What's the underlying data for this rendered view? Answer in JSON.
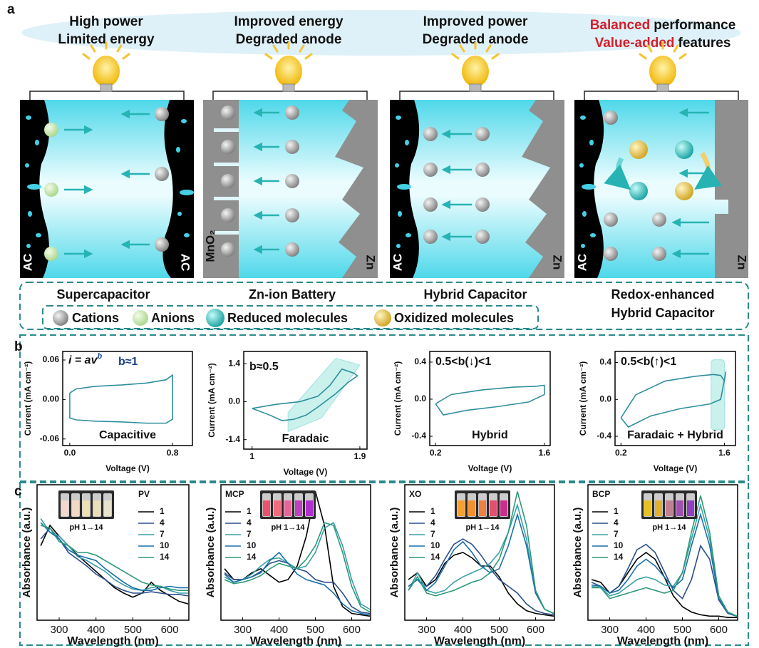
{
  "panel_labels": [
    "a",
    "b",
    "c"
  ],
  "panel_a": {
    "cells": [
      {
        "title": [
          "High power",
          "Limited energy"
        ],
        "left_electrode": "AC",
        "right_electrode": "AC",
        "name": [
          "Supercapacitor"
        ]
      },
      {
        "title": [
          "Improved energy",
          "Degraded anode"
        ],
        "left_electrode": "MnO₂",
        "right_electrode": "Zn",
        "name": [
          "Zn-ion Battery"
        ]
      },
      {
        "title": [
          "Improved power",
          "Degraded anode"
        ],
        "left_electrode": "AC",
        "right_electrode": "Zn",
        "name": [
          "Hybrid Capacitor"
        ]
      },
      {
        "title_highlight": [
          "Balanced",
          "Value-added"
        ],
        "title": [
          "performance",
          "features"
        ],
        "left_electrode": "AC",
        "right_electrode": "Zn",
        "name": [
          "Redox-enhanced",
          "Hybrid Capacitor"
        ]
      }
    ],
    "legend": [
      "Cations",
      "Anions",
      "Reduced molecules",
      "Oxidized molecules"
    ]
  },
  "chart_data": [
    {
      "type": "line",
      "equation": {
        "base": "i = av",
        "sup": "b"
      },
      "annotation": "b≈1",
      "label": "Capacitive",
      "xlabel": "Voltage (V)",
      "ylabel": "Current (mA cm⁻²)",
      "xlim": [
        -0.055,
        0.955
      ],
      "ylim": [
        -0.07,
        0.073
      ],
      "xticks": [
        {
          "value": 0,
          "label": "0.0"
        },
        0.8
      ],
      "yticks": [
        0.06,
        {
          "value": 0,
          "label": "0.00"
        },
        -0.06
      ],
      "series": [
        {
          "color": "#2f8f9d",
          "x": [
            0,
            0.05,
            0.2,
            0.4,
            0.6,
            0.75,
            0.8,
            0.8,
            0.75,
            0.6,
            0.4,
            0.2,
            0.05,
            0,
            0
          ],
          "values": [
            0.01,
            0.016,
            0.02,
            0.022,
            0.025,
            0.03,
            0.037,
            -0.03,
            -0.036,
            -0.036,
            -0.034,
            -0.033,
            -0.031,
            -0.028,
            0.01
          ]
        }
      ]
    },
    {
      "type": "line",
      "annotation": "b≈0.5",
      "label": "Faradaic",
      "xlabel": "Voltage (V)",
      "ylabel": "Current (mA cm⁻²)",
      "xlim": [
        0.93,
        1.96
      ],
      "ylim": [
        -1.75,
        1.85
      ],
      "xticks": [
        1,
        1.9
      ],
      "yticks": [
        1.4,
        {
          "value": 0,
          "label": "0.0"
        },
        -1.4
      ],
      "series": [
        {
          "color": "#2f8f9d",
          "x": [
            1.0,
            1.2,
            1.4,
            1.55,
            1.65,
            1.75,
            1.85,
            1.88,
            1.8,
            1.7,
            1.55,
            1.45,
            1.35,
            1.25,
            1.15,
            1.0
          ],
          "values": [
            -0.25,
            -0.1,
            0.0,
            0.2,
            0.6,
            1.2,
            1.05,
            0.95,
            0.7,
            0.3,
            -0.2,
            -0.5,
            -0.65,
            -0.7,
            -0.5,
            -0.25
          ]
        }
      ]
    },
    {
      "type": "line",
      "annotation": "0.5<b(↓)<1",
      "label": "Hybrid",
      "xlabel": "Voltage (V)",
      "ylabel": "Current (mA cm⁻²)",
      "xlim": [
        0.125,
        1.675
      ],
      "ylim": [
        -0.5,
        0.515
      ],
      "xticks": [
        0.2,
        1.6
      ],
      "yticks": [
        0.4,
        {
          "value": 0,
          "label": "0.0"
        },
        -0.4
      ],
      "series": [
        {
          "color": "#2f8f9d",
          "x": [
            0.2,
            0.4,
            0.8,
            1.2,
            1.5,
            1.6,
            1.6,
            1.4,
            1.0,
            0.6,
            0.3,
            0.2
          ],
          "values": [
            -0.05,
            0.05,
            0.1,
            0.13,
            0.14,
            0.15,
            0.05,
            -0.03,
            -0.08,
            -0.12,
            -0.17,
            -0.05
          ]
        }
      ]
    },
    {
      "type": "line",
      "annotation": "0.5<b(↑)<1",
      "label": "Faradaic + Hybrid",
      "xlabel": "Voltage (V)",
      "ylabel": "Current (mA cm⁻²)",
      "xlim": [
        0.12,
        1.75
      ],
      "ylim": [
        -0.5,
        0.52
      ],
      "xticks": [
        0.2,
        1.6
      ],
      "yticks": [
        0.4,
        {
          "value": 0,
          "label": "0.0"
        },
        -0.4
      ],
      "series": [
        {
          "color": "#2f8f9d",
          "x": [
            0.2,
            0.4,
            0.8,
            1.2,
            1.45,
            1.55,
            1.6,
            1.62,
            1.55,
            1.4,
            1.0,
            0.6,
            0.3,
            0.2
          ],
          "values": [
            -0.2,
            0.05,
            0.2,
            0.25,
            0.27,
            0.26,
            0.2,
            0.3,
            0.0,
            -0.05,
            -0.1,
            -0.18,
            -0.3,
            -0.2
          ]
        }
      ]
    },
    {
      "type": "line",
      "title": "PV",
      "legend": "upper right",
      "inset": {
        "label": "pH 1→14",
        "colors": [
          "#f3d7cf",
          "#f1d9c6",
          "#efe0b0",
          "#eadfb8",
          "#e6e2cc"
        ]
      },
      "xlabel": "Wavelength (nm)",
      "ylabel": "Absorbance (a.u.)",
      "xlim": [
        240,
        652
      ],
      "ylim": [
        0,
        1
      ],
      "xticks": [
        300,
        400,
        500,
        600
      ],
      "x": [
        250,
        275,
        300,
        325,
        350,
        375,
        400,
        425,
        450,
        475,
        500,
        525,
        550,
        575,
        600,
        625,
        650
      ],
      "series": [
        {
          "name": "1",
          "color": "#000000",
          "values": [
            0.55,
            0.7,
            0.62,
            0.55,
            0.48,
            0.42,
            0.36,
            0.3,
            0.24,
            0.2,
            0.17,
            0.2,
            0.28,
            0.22,
            0.18,
            0.14,
            0.12
          ]
        },
        {
          "name": "4",
          "color": "#2b4f8c",
          "values": [
            0.6,
            0.68,
            0.6,
            0.5,
            0.45,
            0.4,
            0.34,
            0.3,
            0.25,
            0.22,
            0.2,
            0.2,
            0.21,
            0.2,
            0.19,
            0.19,
            0.18
          ]
        },
        {
          "name": "7",
          "color": "#3aa0a8",
          "values": [
            0.75,
            0.65,
            0.62,
            0.55,
            0.47,
            0.44,
            0.4,
            0.36,
            0.3,
            0.26,
            0.23,
            0.22,
            0.24,
            0.25,
            0.22,
            0.2,
            0.2
          ]
        },
        {
          "name": "10",
          "color": "#1a6fa8",
          "values": [
            0.72,
            0.65,
            0.6,
            0.52,
            0.48,
            0.46,
            0.44,
            0.38,
            0.33,
            0.28,
            0.24,
            0.22,
            0.22,
            0.24,
            0.25,
            0.24,
            0.24
          ]
        },
        {
          "name": "14",
          "color": "#2c9a7a",
          "values": [
            0.7,
            0.68,
            0.58,
            0.55,
            0.5,
            0.5,
            0.48,
            0.44,
            0.4,
            0.36,
            0.32,
            0.28,
            0.26,
            0.25,
            0.23,
            0.22,
            0.22
          ]
        }
      ]
    },
    {
      "type": "line",
      "title": "MCP",
      "legend": "upper left",
      "inset": {
        "label": "pH 1→14",
        "colors": [
          "#f05070",
          "#f06a80",
          "#e8649a",
          "#c040c0",
          "#b030d0"
        ]
      },
      "xlabel": "Wavelength (nm)",
      "ylabel": "Absorbance (a.u.)",
      "xlim": [
        240,
        652
      ],
      "ylim": [
        0,
        1
      ],
      "xticks": [
        300,
        400,
        500,
        600
      ],
      "x": [
        250,
        275,
        300,
        325,
        350,
        375,
        400,
        425,
        450,
        475,
        500,
        525,
        550,
        575,
        600,
        625,
        650
      ],
      "series": [
        {
          "name": "1",
          "color": "#000000",
          "values": [
            0.38,
            0.3,
            0.3,
            0.35,
            0.38,
            0.33,
            0.28,
            0.3,
            0.4,
            0.62,
            0.95,
            0.7,
            0.25,
            0.1,
            0.05,
            0.04,
            0.03
          ]
        },
        {
          "name": "4",
          "color": "#2b4f8c",
          "values": [
            0.35,
            0.3,
            0.3,
            0.32,
            0.36,
            0.42,
            0.44,
            0.42,
            0.38,
            0.36,
            0.3,
            0.28,
            0.28,
            0.2,
            0.1,
            0.06,
            0.05
          ]
        },
        {
          "name": "7",
          "color": "#3aa0a8",
          "values": [
            0.32,
            0.28,
            0.3,
            0.34,
            0.4,
            0.45,
            0.46,
            0.42,
            0.38,
            0.4,
            0.5,
            0.68,
            0.72,
            0.55,
            0.3,
            0.12,
            0.08
          ]
        },
        {
          "name": "10",
          "color": "#1a6fa8",
          "values": [
            0.34,
            0.28,
            0.3,
            0.32,
            0.35,
            0.44,
            0.5,
            0.42,
            0.34,
            0.3,
            0.28,
            0.26,
            0.2,
            0.12,
            0.07,
            0.05,
            0.04
          ]
        },
        {
          "name": "14",
          "color": "#2c9a7a",
          "values": [
            0.3,
            0.27,
            0.28,
            0.3,
            0.33,
            0.38,
            0.42,
            0.4,
            0.38,
            0.45,
            0.55,
            0.72,
            0.7,
            0.5,
            0.25,
            0.1,
            0.06
          ]
        }
      ]
    },
    {
      "type": "line",
      "title": "XO",
      "legend": "upper left",
      "inset": {
        "label": "pH 1→14",
        "colors": [
          "#f7a030",
          "#f59030",
          "#f08040",
          "#e05070",
          "#c83090"
        ]
      },
      "xlabel": "Wavelength (nm)",
      "ylabel": "Absorbance (a.u.)",
      "xlim": [
        240,
        652
      ],
      "ylim": [
        0,
        1
      ],
      "xticks": [
        300,
        400,
        500,
        600
      ],
      "x": [
        250,
        275,
        300,
        325,
        350,
        375,
        400,
        425,
        450,
        475,
        500,
        525,
        550,
        575,
        600,
        625,
        650
      ],
      "series": [
        {
          "name": "1",
          "color": "#000000",
          "values": [
            0.3,
            0.35,
            0.25,
            0.3,
            0.42,
            0.48,
            0.5,
            0.46,
            0.4,
            0.4,
            0.32,
            0.2,
            0.12,
            0.07,
            0.05,
            0.04,
            0.03
          ]
        },
        {
          "name": "4",
          "color": "#2b4f8c",
          "values": [
            0.25,
            0.3,
            0.25,
            0.33,
            0.45,
            0.56,
            0.6,
            0.56,
            0.48,
            0.38,
            0.3,
            0.25,
            0.2,
            0.12,
            0.07,
            0.05,
            0.04
          ]
        },
        {
          "name": "7",
          "color": "#3aa0a8",
          "values": [
            0.22,
            0.35,
            0.22,
            0.2,
            0.22,
            0.28,
            0.32,
            0.35,
            0.38,
            0.42,
            0.5,
            0.65,
            0.85,
            0.6,
            0.2,
            0.08,
            0.05
          ]
        },
        {
          "name": "10",
          "color": "#1a6fa8",
          "values": [
            0.25,
            0.3,
            0.22,
            0.28,
            0.4,
            0.52,
            0.58,
            0.5,
            0.4,
            0.35,
            0.38,
            0.55,
            0.78,
            0.55,
            0.2,
            0.08,
            0.05
          ]
        },
        {
          "name": "14",
          "color": "#2c9a7a",
          "values": [
            0.22,
            0.32,
            0.2,
            0.18,
            0.2,
            0.22,
            0.25,
            0.28,
            0.3,
            0.35,
            0.45,
            0.65,
            0.95,
            0.7,
            0.22,
            0.08,
            0.05
          ]
        }
      ]
    },
    {
      "type": "line",
      "title": "BCP",
      "legend": "upper left",
      "inset": {
        "label": "pH 1→14",
        "colors": [
          "#e8c020",
          "#e0b030",
          "#c08090",
          "#a050b0",
          "#9040c0"
        ]
      },
      "xlabel": "Wavelength (nm)",
      "ylabel": "Absorbance (a.u.)",
      "xlim": [
        240,
        652
      ],
      "ylim": [
        0,
        1
      ],
      "xticks": [
        300,
        400,
        500,
        600
      ],
      "x": [
        250,
        275,
        300,
        325,
        350,
        375,
        400,
        425,
        450,
        475,
        500,
        525,
        550,
        575,
        600,
        625,
        650
      ],
      "series": [
        {
          "name": "1",
          "color": "#000000",
          "values": [
            0.3,
            0.28,
            0.2,
            0.25,
            0.35,
            0.45,
            0.5,
            0.45,
            0.32,
            0.18,
            0.1,
            0.06,
            0.04,
            0.03,
            0.03,
            0.02,
            0.02
          ]
        },
        {
          "name": "4",
          "color": "#2b4f8c",
          "values": [
            0.28,
            0.25,
            0.2,
            0.25,
            0.38,
            0.52,
            0.56,
            0.5,
            0.36,
            0.22,
            0.16,
            0.3,
            0.55,
            0.45,
            0.15,
            0.05,
            0.03
          ]
        },
        {
          "name": "7",
          "color": "#3aa0a8",
          "values": [
            0.25,
            0.24,
            0.18,
            0.2,
            0.25,
            0.3,
            0.32,
            0.3,
            0.26,
            0.25,
            0.35,
            0.6,
            0.85,
            0.6,
            0.18,
            0.06,
            0.03
          ]
        },
        {
          "name": "10",
          "color": "#1a6fa8",
          "values": [
            0.26,
            0.25,
            0.2,
            0.22,
            0.3,
            0.4,
            0.45,
            0.4,
            0.32,
            0.24,
            0.3,
            0.55,
            0.78,
            0.55,
            0.16,
            0.05,
            0.03
          ]
        },
        {
          "name": "14",
          "color": "#2c9a7a",
          "values": [
            0.24,
            0.24,
            0.16,
            0.18,
            0.2,
            0.22,
            0.24,
            0.22,
            0.2,
            0.22,
            0.35,
            0.65,
            0.92,
            0.65,
            0.18,
            0.06,
            0.03
          ]
        }
      ]
    }
  ]
}
